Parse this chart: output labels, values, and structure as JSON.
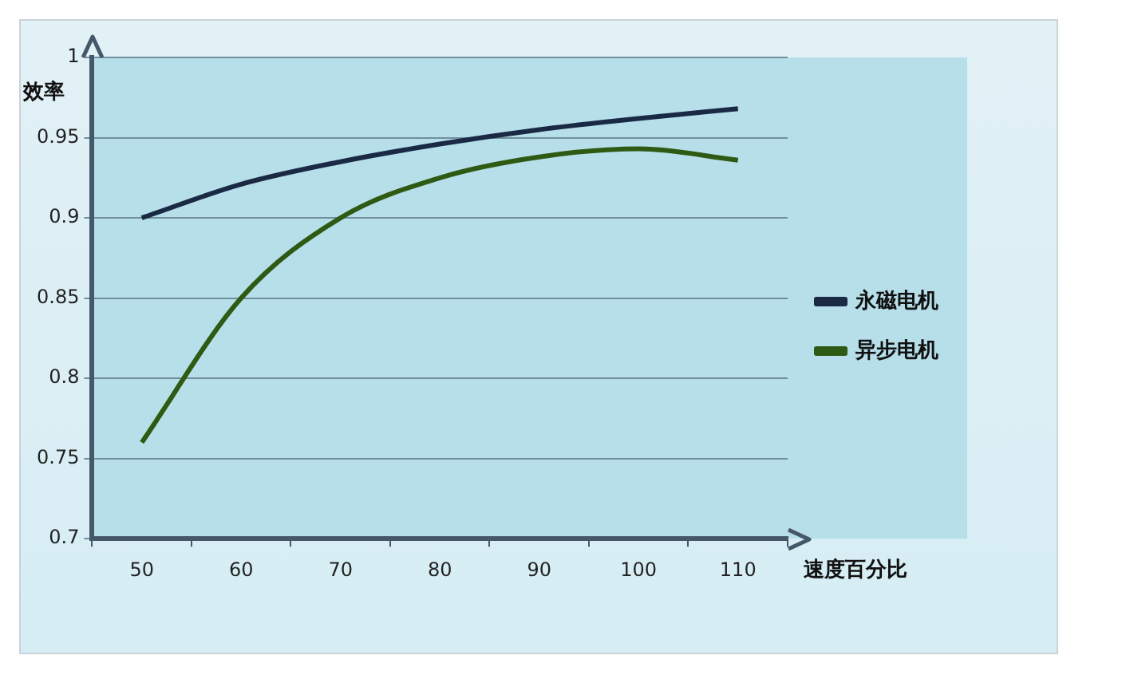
{
  "chart_data": {
    "type": "line",
    "xlabel": "速度百分比",
    "ylabel": "效率",
    "categories": [
      "50",
      "60",
      "70",
      "80",
      "90",
      "100",
      "110"
    ],
    "series": [
      {
        "name": "永磁电机",
        "color": "#1a2a45",
        "values": [
          0.9,
          0.921,
          0.935,
          0.946,
          0.955,
          0.962,
          0.968
        ]
      },
      {
        "name": "异步电机",
        "color": "#2e5a14",
        "values": [
          0.76,
          0.85,
          0.9,
          0.925,
          0.938,
          0.943,
          0.936
        ]
      }
    ],
    "ylim": [
      0.7,
      1
    ],
    "yticks": [
      0.7,
      0.75,
      0.8,
      0.85,
      0.9,
      0.95,
      1
    ],
    "grid": "y",
    "legend": "right",
    "marker": "none",
    "line_style": "solid"
  }
}
